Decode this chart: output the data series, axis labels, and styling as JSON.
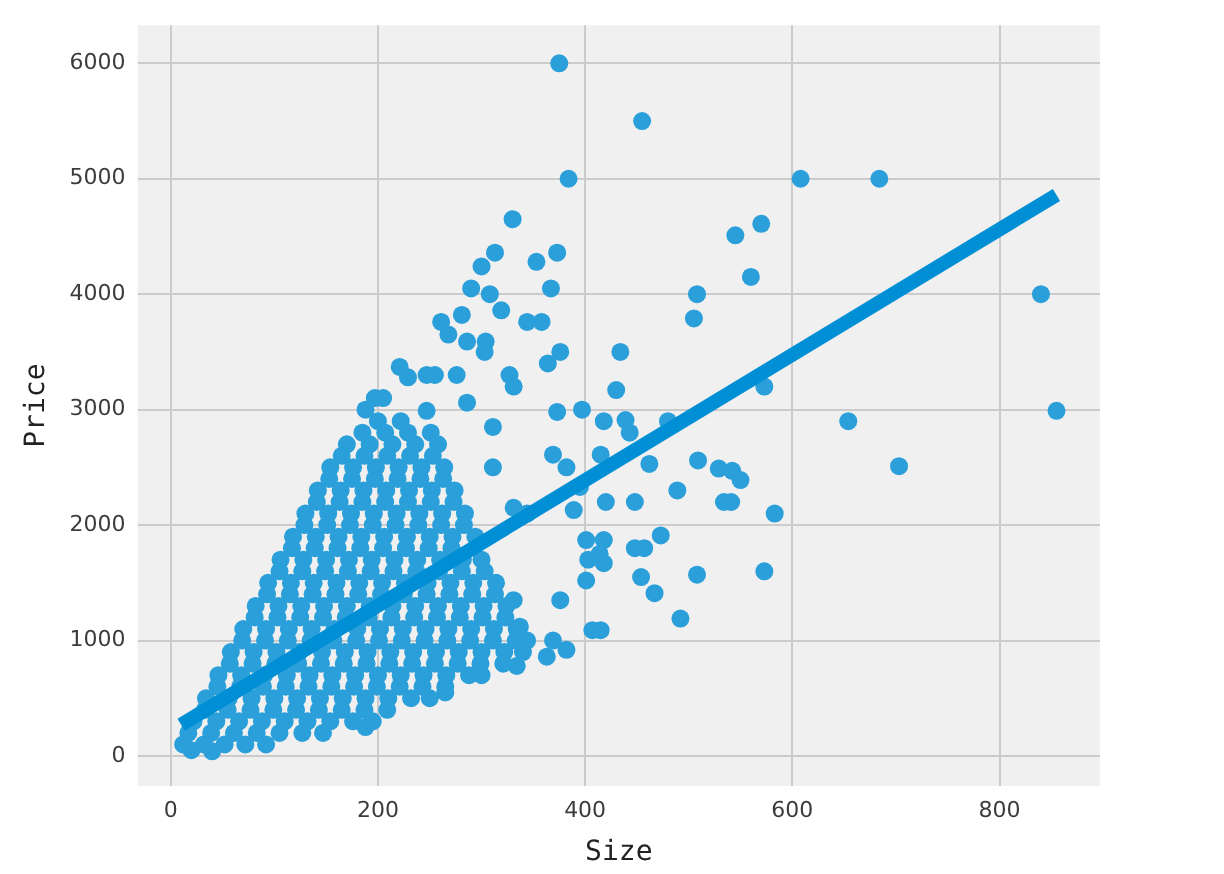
{
  "chart_data": {
    "type": "scatter",
    "xlabel": "Size",
    "ylabel": "Price",
    "xlim": [
      -32,
      897
    ],
    "ylim": [
      -260,
      6330
    ],
    "xticks": [
      0,
      200,
      400,
      600,
      800
    ],
    "yticks": [
      0,
      1000,
      2000,
      3000,
      4000,
      5000,
      6000
    ],
    "grid": true,
    "series": [
      {
        "color": "#2a9fd9",
        "marker": "circle",
        "x": [
          375,
          384,
          455,
          330,
          313,
          300,
          290,
          308,
          319,
          353,
          373,
          367,
          344,
          358,
          281,
          261,
          268,
          286,
          304,
          303,
          376,
          364,
          434,
          430,
          397,
          373,
          418,
          439,
          327,
          331,
          188,
          197,
          205,
          221,
          229,
          247,
          255,
          276,
          608,
          684,
          545,
          570,
          560,
          508,
          505,
          840,
          855,
          573,
          443,
          480,
          654,
          703,
          509,
          529,
          542,
          550,
          489,
          534,
          541,
          583,
          462,
          420,
          448,
          473,
          448,
          457,
          418,
          418,
          454,
          508,
          573,
          467,
          492,
          415,
          415,
          363,
          382,
          407,
          334,
          265,
          188,
          247,
          286,
          311,
          311,
          369,
          382,
          331,
          344,
          395,
          401,
          414,
          389,
          403,
          401,
          376,
          369,
          337,
          331,
          344,
          20,
          40,
          12,
          32,
          52,
          72,
          92,
          22,
          44,
          66,
          88,
          110,
          132,
          154,
          176,
          195,
          34,
          56,
          78,
          100,
          122,
          144,
          166,
          188,
          210,
          232,
          250,
          46,
          68,
          90,
          112,
          134,
          156,
          178,
          200,
          222,
          244,
          266,
          288,
          300,
          58,
          80,
          102,
          124,
          146,
          168,
          190,
          212,
          234,
          256,
          278,
          300,
          322,
          340,
          70,
          92,
          114,
          136,
          158,
          180,
          202,
          224,
          246,
          268,
          290,
          312,
          334,
          82,
          104,
          126,
          148,
          170,
          192,
          214,
          236,
          258,
          280,
          302,
          324,
          94,
          116,
          138,
          160,
          182,
          204,
          226,
          248,
          270,
          292,
          314,
          106,
          128,
          150,
          172,
          194,
          216,
          238,
          260,
          282,
          300,
          118,
          140,
          162,
          184,
          206,
          228,
          250,
          272,
          294,
          130,
          152,
          174,
          196,
          218,
          240,
          262,
          284,
          142,
          164,
          186,
          208,
          230,
          252,
          274,
          154,
          176,
          198,
          220,
          242,
          264,
          170,
          192,
          214,
          236,
          258,
          200,
          222,
          17,
          39,
          61,
          83,
          105,
          127,
          147,
          33,
          55,
          77,
          99,
          121,
          143,
          165,
          187,
          209,
          45,
          67,
          89,
          111,
          133,
          155,
          177,
          199,
          221,
          243,
          265,
          57,
          79,
          101,
          123,
          145,
          167,
          189,
          211,
          233,
          255,
          277,
          299,
          321,
          69,
          91,
          113,
          135,
          157,
          179,
          201,
          223,
          245,
          267,
          289,
          311,
          333,
          81,
          103,
          125,
          147,
          169,
          191,
          213,
          235,
          257,
          279,
          301,
          323,
          93,
          115,
          137,
          159,
          181,
          203,
          225,
          247,
          269,
          291,
          313,
          105,
          127,
          149,
          171,
          193,
          215,
          237,
          259,
          281,
          303,
          117,
          139,
          161,
          183,
          205,
          227,
          249,
          271,
          129,
          151,
          173,
          195,
          217,
          239,
          261,
          283,
          141,
          163,
          185,
          207,
          229,
          251,
          273,
          153,
          175,
          197,
          219,
          241,
          263,
          165,
          187,
          209,
          231,
          253,
          185,
          207,
          229,
          251
        ],
        "values": [
          6000,
          5000,
          5500,
          4650,
          4360,
          4240,
          4050,
          4000,
          3860,
          4280,
          4360,
          4050,
          3760,
          3760,
          3820,
          3760,
          3650,
          3590,
          3590,
          3500,
          3500,
          3400,
          3500,
          3170,
          3000,
          2980,
          2900,
          2910,
          3300,
          3200,
          3000,
          3100,
          3100,
          3370,
          3280,
          3300,
          3300,
          3300,
          5000,
          5000,
          4510,
          4610,
          4150,
          4000,
          3790,
          4000,
          2990,
          3200,
          2800,
          2900,
          2900,
          2510,
          2560,
          2490,
          2470,
          2390,
          2300,
          2200,
          2200,
          2100,
          2530,
          2200,
          2200,
          1910,
          1800,
          1800,
          1870,
          1670,
          1550,
          1570,
          1600,
          1410,
          1190,
          1090,
          2610,
          860,
          920,
          1090,
          780,
          550,
          250,
          2990,
          3060,
          2850,
          2500,
          2610,
          2500,
          2150,
          2100,
          2330,
          1870,
          1750,
          2130,
          1700,
          1520,
          1350,
          1000,
          1120,
          1350,
          1000,
          50,
          40,
          100,
          100,
          100,
          100,
          100,
          300,
          300,
          300,
          300,
          300,
          300,
          300,
          300,
          300,
          500,
          500,
          500,
          500,
          500,
          500,
          500,
          500,
          500,
          500,
          500,
          700,
          700,
          700,
          700,
          700,
          700,
          700,
          700,
          700,
          700,
          700,
          700,
          700,
          900,
          900,
          900,
          900,
          900,
          900,
          900,
          900,
          900,
          900,
          900,
          900,
          900,
          900,
          1100,
          1100,
          1100,
          1100,
          1100,
          1100,
          1100,
          1100,
          1100,
          1100,
          1100,
          1100,
          1100,
          1300,
          1300,
          1300,
          1300,
          1300,
          1300,
          1300,
          1300,
          1300,
          1300,
          1300,
          1300,
          1500,
          1500,
          1500,
          1500,
          1500,
          1500,
          1500,
          1500,
          1500,
          1500,
          1500,
          1700,
          1700,
          1700,
          1700,
          1700,
          1700,
          1700,
          1700,
          1700,
          1700,
          1900,
          1900,
          1900,
          1900,
          1900,
          1900,
          1900,
          1900,
          1900,
          2100,
          2100,
          2100,
          2100,
          2100,
          2100,
          2100,
          2100,
          2300,
          2300,
          2300,
          2300,
          2300,
          2300,
          2300,
          2500,
          2500,
          2500,
          2500,
          2500,
          2500,
          2700,
          2700,
          2700,
          2700,
          2700,
          2900,
          2900,
          200,
          200,
          200,
          200,
          200,
          200,
          200,
          400,
          400,
          400,
          400,
          400,
          400,
          400,
          400,
          400,
          600,
          600,
          600,
          600,
          600,
          600,
          600,
          600,
          600,
          600,
          600,
          800,
          800,
          800,
          800,
          800,
          800,
          800,
          800,
          800,
          800,
          800,
          800,
          800,
          1000,
          1000,
          1000,
          1000,
          1000,
          1000,
          1000,
          1000,
          1000,
          1000,
          1000,
          1000,
          1000,
          1200,
          1200,
          1200,
          1200,
          1200,
          1200,
          1200,
          1200,
          1200,
          1200,
          1200,
          1200,
          1400,
          1400,
          1400,
          1400,
          1400,
          1400,
          1400,
          1400,
          1400,
          1400,
          1400,
          1600,
          1600,
          1600,
          1600,
          1600,
          1600,
          1600,
          1600,
          1600,
          1600,
          1800,
          1800,
          1800,
          1800,
          1800,
          1800,
          1800,
          1800,
          2000,
          2000,
          2000,
          2000,
          2000,
          2000,
          2000,
          2000,
          2200,
          2200,
          2200,
          2200,
          2200,
          2200,
          2200,
          2400,
          2400,
          2400,
          2400,
          2400,
          2400,
          2600,
          2600,
          2600,
          2600,
          2600,
          2800,
          2800,
          2800,
          2800
        ]
      },
      {
        "type": "line",
        "color": "#008fd5",
        "marker": "none",
        "x": [
          10,
          855
        ],
        "values": [
          270,
          4860
        ]
      }
    ]
  }
}
